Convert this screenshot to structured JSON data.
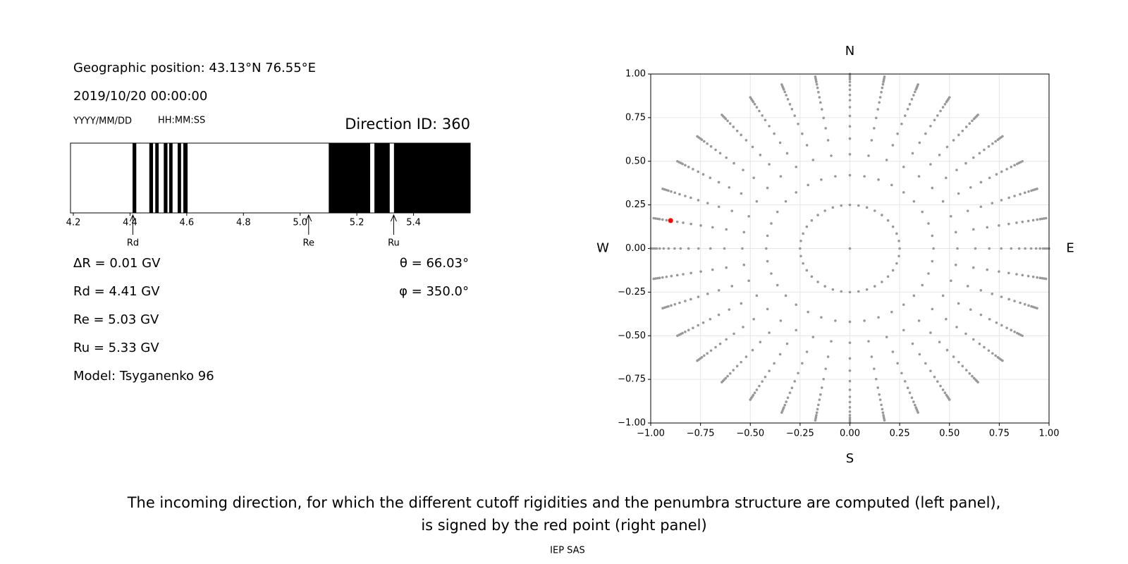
{
  "info": {
    "geo": "Geographic position: 43.13°N 76.55°E",
    "datetime": "2019/10/20 00:00:00",
    "date_format": "YYYY/MM/DD",
    "time_format": "HH:MM:SS",
    "direction": "Direction ID: 360",
    "params": [
      "ΔR = 0.01 GV",
      "Rd = 4.41 GV",
      "Re = 5.03 GV",
      "Ru = 5.33 GV",
      "Model: Tsyganenko 96"
    ],
    "angles": [
      "θ = 66.03°",
      "φ = 350.0°"
    ]
  },
  "chart_data": [
    {
      "type": "penumbra",
      "color": "#000000",
      "xlim": [
        4.19,
        5.6
      ],
      "xticks": [
        4.2,
        4.4,
        4.6,
        4.8,
        {
          "value": 5.0,
          "label": "5.0"
        },
        5.2,
        5.4
      ],
      "bands": [
        [
          4.409,
          4.422
        ],
        [
          4.468,
          4.481
        ],
        [
          4.489,
          4.501
        ],
        [
          4.519,
          4.532
        ],
        [
          4.538,
          4.55
        ],
        [
          4.568,
          4.58
        ],
        [
          4.588,
          4.603
        ],
        [
          5.101,
          5.247
        ],
        [
          5.262,
          5.316
        ],
        [
          5.331,
          5.6
        ]
      ],
      "markers": [
        {
          "label": "Rd",
          "value": 4.41
        },
        {
          "label": "Re",
          "value": 5.03
        },
        {
          "label": "Ru",
          "value": 5.33
        }
      ]
    },
    {
      "type": "polar-scatter",
      "color": "#999999",
      "grid": true,
      "xlim": [
        -1,
        1
      ],
      "ylim": [
        -1,
        1
      ],
      "xticks": [
        {
          "value": -1,
          "label": "−1.00"
        },
        {
          "value": -0.75,
          "label": "−0.75"
        },
        {
          "value": -0.5,
          "label": "−0.50"
        },
        {
          "value": -0.25,
          "label": "−0.25"
        },
        {
          "value": 0,
          "label": "0.00"
        },
        0.25,
        {
          "value": 0.5,
          "label": "0.50"
        },
        0.75,
        {
          "value": 1,
          "label": "1.00"
        }
      ],
      "yticks": [
        {
          "value": -1,
          "label": "−1.00"
        },
        {
          "value": -0.75,
          "label": "−0.75"
        },
        {
          "value": -0.5,
          "label": "−0.50"
        },
        {
          "value": -0.25,
          "label": "−0.25"
        },
        {
          "value": 0,
          "label": "0.00"
        },
        0.25,
        {
          "value": 0.5,
          "label": "0.50"
        },
        0.75,
        {
          "value": 1,
          "label": "1.00"
        }
      ],
      "radii": [
        0.25,
        0.42,
        0.54,
        0.63,
        0.7,
        0.76,
        0.81,
        0.85,
        0.88,
        0.91,
        0.935,
        0.955,
        0.97,
        0.98,
        0.99,
        1.0
      ],
      "azimuths": [
        0,
        10,
        20,
        30,
        40,
        50,
        60,
        70,
        80,
        90,
        100,
        110,
        120,
        130,
        140,
        150,
        160,
        170,
        180,
        190,
        200,
        210,
        220,
        230,
        240,
        250,
        260,
        270,
        280,
        290,
        300,
        310,
        320,
        330,
        340,
        350
      ],
      "center": {
        "x": 0,
        "y": 0
      },
      "highlight": {
        "x": -0.9,
        "y": 0.16,
        "color": "#ff0000"
      },
      "compass": {
        "top": "N",
        "bottom": "S",
        "left": "W",
        "right": "E"
      }
    }
  ],
  "caption": [
    "The incoming direction, for which the different cutoff rigidities and the penumbra structure are computed (left panel),",
    "is signed by the red point (right panel)"
  ],
  "credit": "IEP SAS"
}
